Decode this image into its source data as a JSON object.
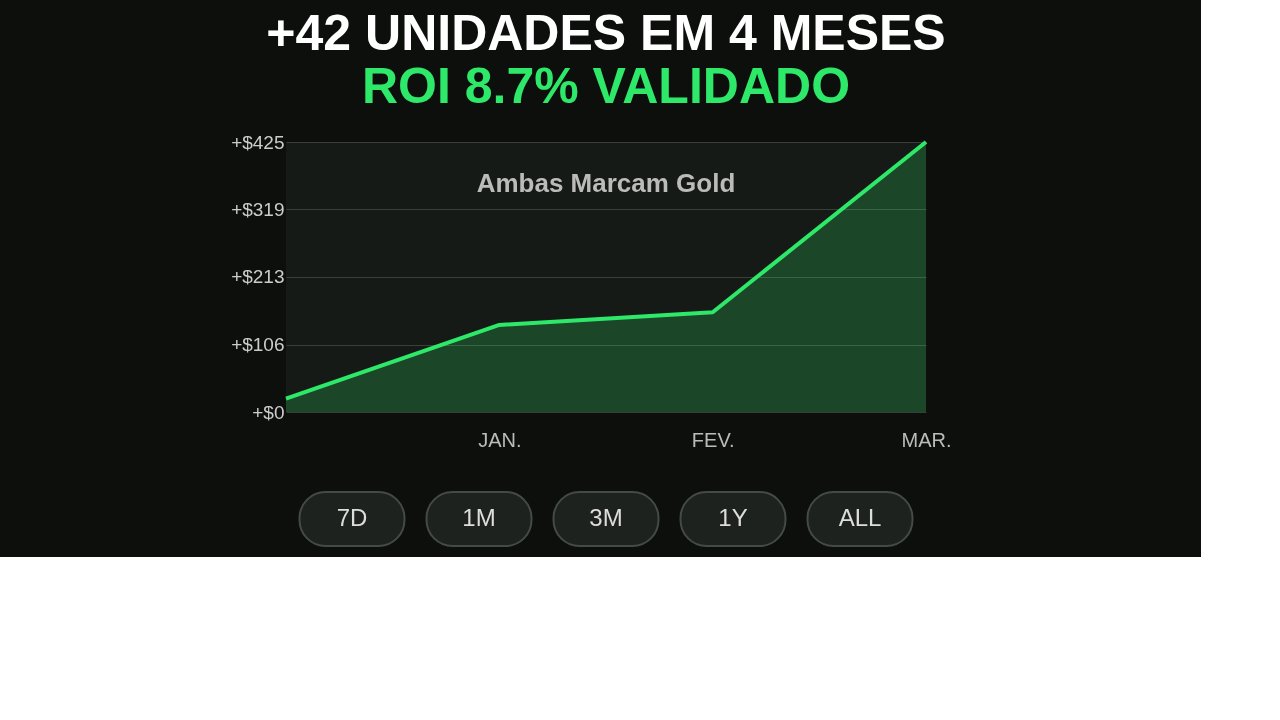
{
  "chart_data": {
    "type": "area",
    "title": "+42 UNIDADES EM 4 MESES",
    "subtitle": "ROI 8.7% VALIDADO",
    "categories": [
      null,
      "JAN.",
      "FEV.",
      "MAR."
    ],
    "series": [
      {
        "color": "#2ee86a",
        "values": [
          21,
          137,
          157,
          425
        ]
      }
    ],
    "ylim": [
      0,
      425
    ],
    "yticks": [
      {
        "value": 0,
        "label": "+$0"
      },
      {
        "value": 106,
        "label": "+$106"
      },
      {
        "value": 213,
        "label": "+$213"
      },
      {
        "value": 319,
        "label": "+$319"
      },
      {
        "value": 425,
        "label": "+$425"
      }
    ],
    "grid": "y",
    "line_style": "solid",
    "annotations": [
      "Ambas Marcam Gold",
      "7D",
      "1M",
      "3M",
      "1Y",
      "ALL"
    ]
  }
}
